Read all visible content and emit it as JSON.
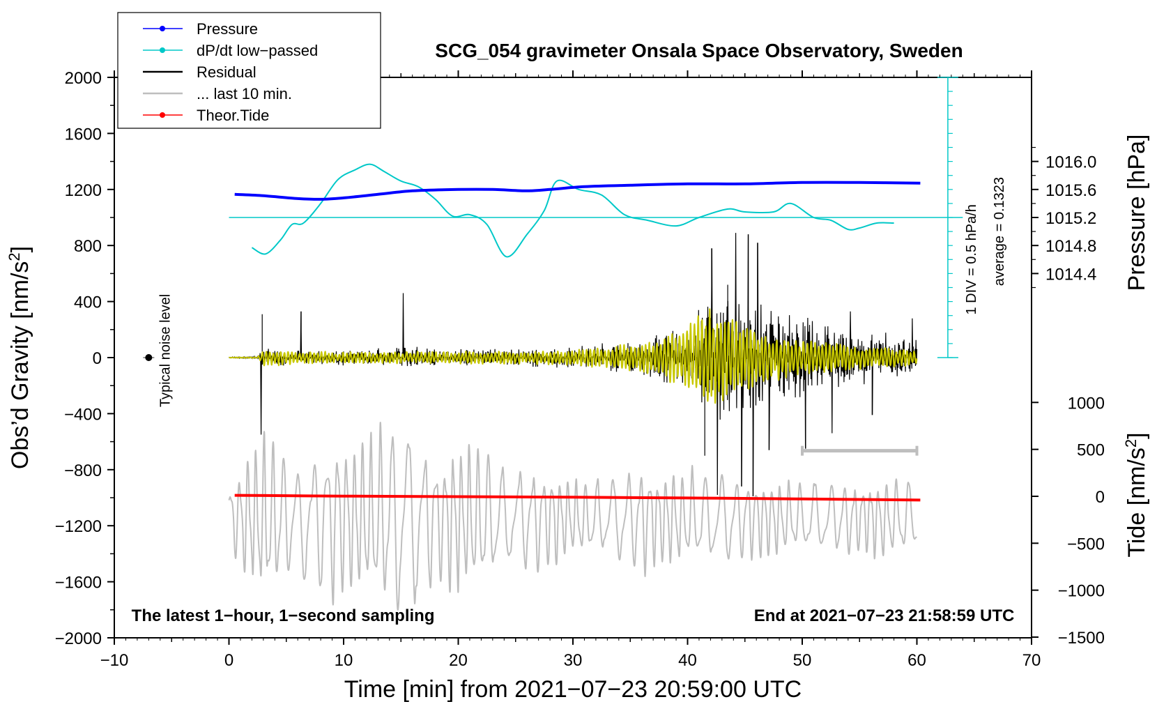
{
  "chart_data": {
    "type": "line",
    "title": "SCG_054 gravimeter Onsala Space Observatory, Sweden",
    "xlabel": "Time [min] from 2021−07−23 20:59:00 UTC",
    "ylabel_left": "Obs’d Gravity [nm/s",
    "ylabel_left_sup": "2",
    "ylabel_left_end": "]",
    "ylabel_right_top": "Pressure [hPa]",
    "ylabel_right_bottom": "Tide [nm/s",
    "ylabel_right_bottom_sup": "2",
    "ylabel_right_bottom_end": "]",
    "xlim": [
      -10,
      70
    ],
    "ylim": [
      -2000,
      2000
    ],
    "x_ticks": [
      "−10",
      "0",
      "10",
      "20",
      "30",
      "40",
      "50",
      "60",
      "70"
    ],
    "x_tick_values": [
      -10,
      0,
      10,
      20,
      30,
      40,
      50,
      60,
      70
    ],
    "y_ticks": [
      "2000",
      "1600",
      "1200",
      "800",
      "400",
      "0",
      "−400",
      "−800",
      "−1200",
      "−1600",
      "−2000"
    ],
    "y_tick_values": [
      2000,
      1600,
      1200,
      800,
      400,
      0,
      -400,
      -800,
      -1200,
      -1600,
      -2000
    ],
    "pressure_axis": {
      "ticks": [
        "1016.0",
        "1015.6",
        "1015.2",
        "1014.8",
        "1014.4"
      ],
      "tick_values": [
        1016.0,
        1015.6,
        1015.2,
        1014.8,
        1014.4
      ],
      "gravity_at_1015_2": 1000,
      "gravity_per_hpa": 500
    },
    "tide_axis": {
      "ticks": [
        "1000",
        "500",
        "0",
        "−500",
        "−1000",
        "−1500"
      ],
      "tick_values": [
        1000,
        500,
        0,
        -500,
        -1000,
        -1500
      ],
      "gravity_at_zero": -990,
      "gravity_per_unit": 0.67
    },
    "dpdt_axis": {
      "label_div": "1 DIV = 0.5 hPa/h",
      "label_avg": "average = 0.1323",
      "baseline_gravity": 1000,
      "axis_x": 62.7,
      "axis_top": 2000,
      "axis_bottom": 0,
      "div_gravity": 200
    },
    "legend": [
      {
        "name": "Pressure",
        "color": "#0000ff",
        "marker": true
      },
      {
        "name": "dP/dt low−passed",
        "color": "#00c8c8",
        "marker": true
      },
      {
        "name": "Residual",
        "color": "#000000",
        "marker": false
      },
      {
        "name": "... last 10 min.",
        "color": "#bebebe",
        "marker": false
      },
      {
        "name": "Theor.Tide",
        "color": "#ff0000",
        "marker": true
      }
    ],
    "annotations": {
      "noise_label": "Typical noise level",
      "noise_point": {
        "x": -7,
        "y": 0
      },
      "bottom_left": "The latest 1−hour, 1−second sampling",
      "bottom_right": "End at 2021−07−23 21:58:59 UTC",
      "last10_bar": {
        "x_start": 50,
        "x_end": 60,
        "y": -665
      }
    },
    "series": [
      {
        "name": "Pressure",
        "unit": "hPa",
        "color": "#0000ff",
        "x": [
          0.5,
          3,
          6,
          8,
          10,
          13,
          16,
          20,
          23,
          26,
          28,
          31,
          35,
          40,
          45,
          50,
          55,
          60.3
        ],
        "values": [
          1015.53,
          1015.51,
          1015.47,
          1015.46,
          1015.48,
          1015.53,
          1015.58,
          1015.6,
          1015.6,
          1015.58,
          1015.6,
          1015.64,
          1015.66,
          1015.68,
          1015.68,
          1015.7,
          1015.7,
          1015.69
        ]
      },
      {
        "name": "dP/dt low−passed",
        "unit": "gravity-scale",
        "color": "#00c8c8",
        "x": [
          2,
          3.2,
          4.5,
          5.5,
          6.5,
          8,
          9.5,
          11,
          12.3,
          13.5,
          15,
          16.5,
          18,
          19.5,
          21,
          22.5,
          24.2,
          26,
          27.5,
          28.6,
          30.5,
          32.5,
          34.5,
          36.5,
          39,
          41,
          43.5,
          45,
          47.5,
          49,
          51,
          52.5,
          54,
          55,
          56.5,
          58
        ],
        "values": [
          785,
          740,
          840,
          950,
          960,
          1100,
          1270,
          1340,
          1380,
          1330,
          1260,
          1220,
          1130,
          1010,
          1020,
          950,
          720,
          880,
          1050,
          1260,
          1200,
          1160,
          1020,
          980,
          940,
          1000,
          1060,
          1040,
          1040,
          1100,
          1000,
          980,
          915,
          925,
          960,
          960
        ]
      },
      {
        "name": "Residual",
        "unit": "nm/s2",
        "color": "#000000",
        "x_range": [
          0,
          60
        ],
        "envelope_x": [
          0,
          2.5,
          3,
          5,
          10,
          14,
          16,
          20,
          25,
          30,
          33,
          36,
          39,
          41,
          42.5,
          44,
          45.5,
          47,
          49,
          52,
          55,
          58,
          60
        ],
        "envelope_amp": [
          5,
          10,
          100,
          60,
          70,
          90,
          90,
          70,
          80,
          95,
          130,
          160,
          240,
          420,
          560,
          520,
          560,
          440,
          380,
          300,
          240,
          200,
          180
        ],
        "peaks": [
          {
            "x": 2.8,
            "y": -550
          },
          {
            "x": 2.9,
            "y": 310
          },
          {
            "x": 6.3,
            "y": 330
          },
          {
            "x": 15.2,
            "y": 460
          },
          {
            "x": 41.5,
            "y": -700
          },
          {
            "x": 42.1,
            "y": 780
          },
          {
            "x": 42.6,
            "y": -980
          },
          {
            "x": 43.5,
            "y": 520
          },
          {
            "x": 44.2,
            "y": 890
          },
          {
            "x": 44.7,
            "y": -920
          },
          {
            "x": 45.3,
            "y": 880
          },
          {
            "x": 45.7,
            "y": -990
          },
          {
            "x": 46.1,
            "y": 820
          },
          {
            "x": 47.1,
            "y": -660
          },
          {
            "x": 50.3,
            "y": -650
          },
          {
            "x": 52.6,
            "y": -540
          },
          {
            "x": 54.2,
            "y": 330
          },
          {
            "x": 56.1,
            "y": -410
          },
          {
            "x": 59.6,
            "y": 280
          }
        ]
      },
      {
        "name": "Residual low−passed",
        "unit": "nm/s2",
        "color": "#c8c800",
        "x_range": [
          0,
          60
        ],
        "envelope_x": [
          0,
          2.5,
          3,
          10,
          20,
          30,
          36,
          39,
          41,
          42,
          44,
          46,
          48,
          52,
          56,
          60
        ],
        "envelope_amp": [
          2,
          5,
          60,
          40,
          45,
          55,
          110,
          200,
          330,
          370,
          300,
          230,
          160,
          110,
          80,
          60
        ]
      },
      {
        "name": "... last 10 min.",
        "unit": "gravity-scale",
        "color": "#bebebe",
        "x_range": [
          0,
          60
        ],
        "envelope_x": [
          0,
          3,
          6,
          9,
          12,
          15,
          18,
          22,
          24,
          28,
          30,
          33,
          36,
          40,
          43,
          46,
          49,
          52,
          55,
          58,
          60
        ],
        "envelope_amp": [
          280,
          700,
          450,
          650,
          640,
          850,
          560,
          650,
          420,
          420,
          300,
          330,
          430,
          390,
          370,
          330,
          300,
          300,
          300,
          330,
          280
        ],
        "center": -1150
      },
      {
        "name": "Theor.Tide",
        "unit": "nm/s2",
        "color": "#ff0000",
        "x": [
          0.5,
          10,
          20,
          30,
          40,
          50,
          60.3
        ],
        "values": [
          10,
          2,
          -4,
          -10,
          -18,
          -28,
          -40
        ]
      }
    ]
  }
}
